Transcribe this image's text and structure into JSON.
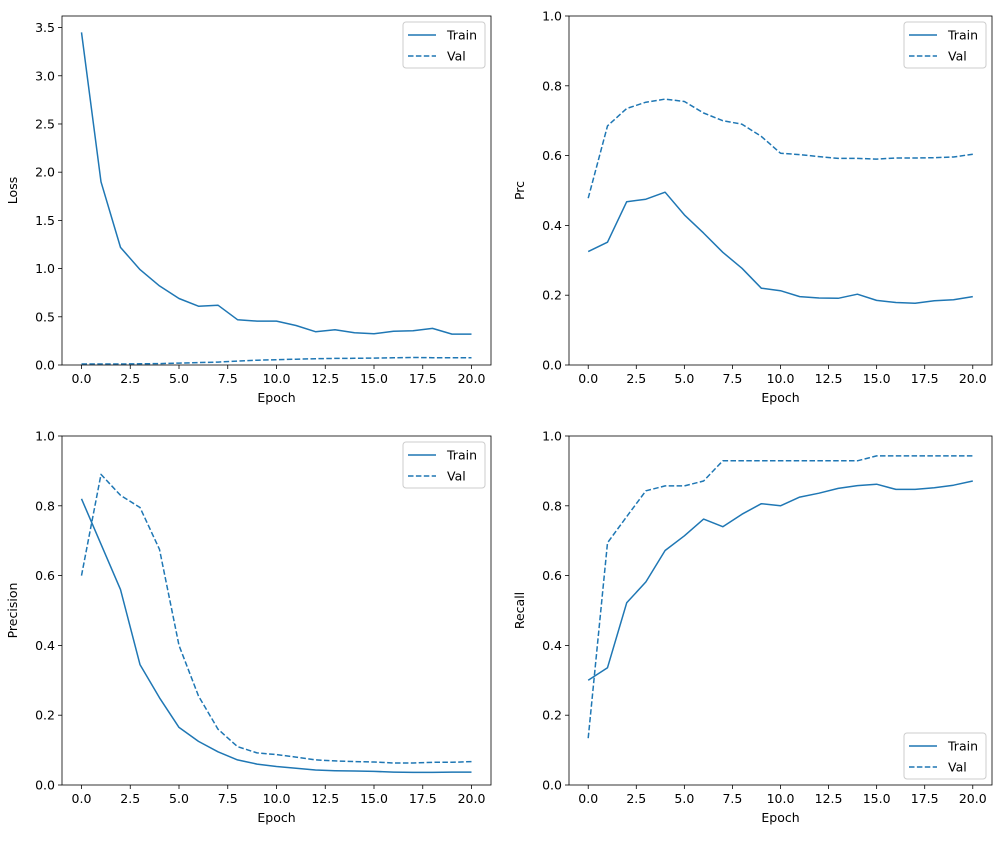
{
  "chart_data": [
    {
      "type": "line",
      "xlabel": "Epoch",
      "ylabel": "Loss",
      "xlim": [
        -1,
        21
      ],
      "ylim": [
        0,
        3.62
      ],
      "xticks": [
        "0.0",
        "2.5",
        "5.0",
        "7.5",
        "10.0",
        "12.5",
        "15.0",
        "17.5",
        "20.0"
      ],
      "yticks": [
        "0.0",
        "0.5",
        "1.0",
        "1.5",
        "2.0",
        "2.5",
        "3.0",
        "3.5"
      ],
      "legend": "top-right",
      "x": [
        0,
        1,
        2,
        3,
        4,
        5,
        6,
        7,
        8,
        9,
        10,
        11,
        12,
        13,
        14,
        15,
        16,
        17,
        18,
        19,
        20
      ],
      "series": [
        {
          "name": "Train",
          "style": "solid",
          "values": [
            3.45,
            1.9,
            1.22,
            0.99,
            0.82,
            0.69,
            0.61,
            0.62,
            0.47,
            0.455,
            0.455,
            0.41,
            0.345,
            0.365,
            0.335,
            0.325,
            0.35,
            0.355,
            0.38,
            0.32,
            0.32
          ]
        },
        {
          "name": "Val",
          "style": "dashed",
          "values": [
            0.01,
            0.01,
            0.01,
            0.012,
            0.015,
            0.02,
            0.025,
            0.03,
            0.04,
            0.05,
            0.055,
            0.06,
            0.065,
            0.068,
            0.07,
            0.072,
            0.075,
            0.078,
            0.076,
            0.075,
            0.075
          ]
        }
      ]
    },
    {
      "type": "line",
      "xlabel": "Epoch",
      "ylabel": "Prc",
      "xlim": [
        -1,
        21
      ],
      "ylim": [
        0,
        1
      ],
      "xticks": [
        "0.0",
        "2.5",
        "5.0",
        "7.5",
        "10.0",
        "12.5",
        "15.0",
        "17.5",
        "20.0"
      ],
      "yticks": [
        "0.0",
        "0.2",
        "0.4",
        "0.6",
        "0.8",
        "1.0"
      ],
      "legend": "top-right",
      "x": [
        0,
        1,
        2,
        3,
        4,
        5,
        6,
        7,
        8,
        9,
        10,
        11,
        12,
        13,
        14,
        15,
        16,
        17,
        18,
        19,
        20
      ],
      "series": [
        {
          "name": "Train",
          "style": "solid",
          "values": [
            0.325,
            0.352,
            0.468,
            0.475,
            0.495,
            0.43,
            0.378,
            0.323,
            0.277,
            0.22,
            0.213,
            0.196,
            0.192,
            0.191,
            0.203,
            0.185,
            0.179,
            0.177,
            0.184,
            0.187,
            0.196
          ]
        },
        {
          "name": "Val",
          "style": "dashed",
          "values": [
            0.478,
            0.685,
            0.735,
            0.753,
            0.762,
            0.755,
            0.722,
            0.7,
            0.69,
            0.655,
            0.607,
            0.603,
            0.597,
            0.592,
            0.592,
            0.59,
            0.593,
            0.593,
            0.594,
            0.596,
            0.604
          ]
        }
      ]
    },
    {
      "type": "line",
      "xlabel": "Epoch",
      "ylabel": "Precision",
      "xlim": [
        -1,
        21
      ],
      "ylim": [
        0,
        1
      ],
      "xticks": [
        "0.0",
        "2.5",
        "5.0",
        "7.5",
        "10.0",
        "12.5",
        "15.0",
        "17.5",
        "20.0"
      ],
      "yticks": [
        "0.0",
        "0.2",
        "0.4",
        "0.6",
        "0.8",
        "1.0"
      ],
      "legend": "top-right",
      "x": [
        0,
        1,
        2,
        3,
        4,
        5,
        6,
        7,
        8,
        9,
        10,
        11,
        12,
        13,
        14,
        15,
        16,
        17,
        18,
        19,
        20
      ],
      "series": [
        {
          "name": "Train",
          "style": "solid",
          "values": [
            0.82,
            0.69,
            0.56,
            0.345,
            0.25,
            0.165,
            0.125,
            0.095,
            0.072,
            0.06,
            0.053,
            0.048,
            0.043,
            0.041,
            0.04,
            0.039,
            0.037,
            0.036,
            0.036,
            0.037,
            0.037
          ]
        },
        {
          "name": "Val",
          "style": "dashed",
          "values": [
            0.6,
            0.89,
            0.83,
            0.795,
            0.675,
            0.4,
            0.255,
            0.16,
            0.11,
            0.092,
            0.087,
            0.08,
            0.072,
            0.069,
            0.067,
            0.066,
            0.063,
            0.063,
            0.065,
            0.065,
            0.067
          ]
        }
      ]
    },
    {
      "type": "line",
      "xlabel": "Epoch",
      "ylabel": "Recall",
      "xlim": [
        -1,
        21
      ],
      "ylim": [
        0,
        1
      ],
      "xticks": [
        "0.0",
        "2.5",
        "5.0",
        "7.5",
        "10.0",
        "12.5",
        "15.0",
        "17.5",
        "20.0"
      ],
      "yticks": [
        "0.0",
        "0.2",
        "0.4",
        "0.6",
        "0.8",
        "1.0"
      ],
      "legend": "bottom-right",
      "x": [
        0,
        1,
        2,
        3,
        4,
        5,
        6,
        7,
        8,
        9,
        10,
        11,
        12,
        13,
        14,
        15,
        16,
        17,
        18,
        19,
        20
      ],
      "series": [
        {
          "name": "Train",
          "style": "solid",
          "values": [
            0.3,
            0.336,
            0.522,
            0.582,
            0.672,
            0.714,
            0.762,
            0.74,
            0.776,
            0.806,
            0.8,
            0.825,
            0.836,
            0.85,
            0.858,
            0.862,
            0.847,
            0.847,
            0.852,
            0.859,
            0.871
          ]
        },
        {
          "name": "Val",
          "style": "dashed",
          "values": [
            0.134,
            0.694,
            0.769,
            0.843,
            0.857,
            0.857,
            0.871,
            0.929,
            0.929,
            0.929,
            0.929,
            0.929,
            0.929,
            0.929,
            0.929,
            0.943,
            0.943,
            0.943,
            0.943,
            0.943,
            0.943
          ]
        }
      ]
    }
  ],
  "colors": {
    "series": "#1f77b4",
    "axes": "#000000",
    "legend_border": "#cccccc"
  }
}
